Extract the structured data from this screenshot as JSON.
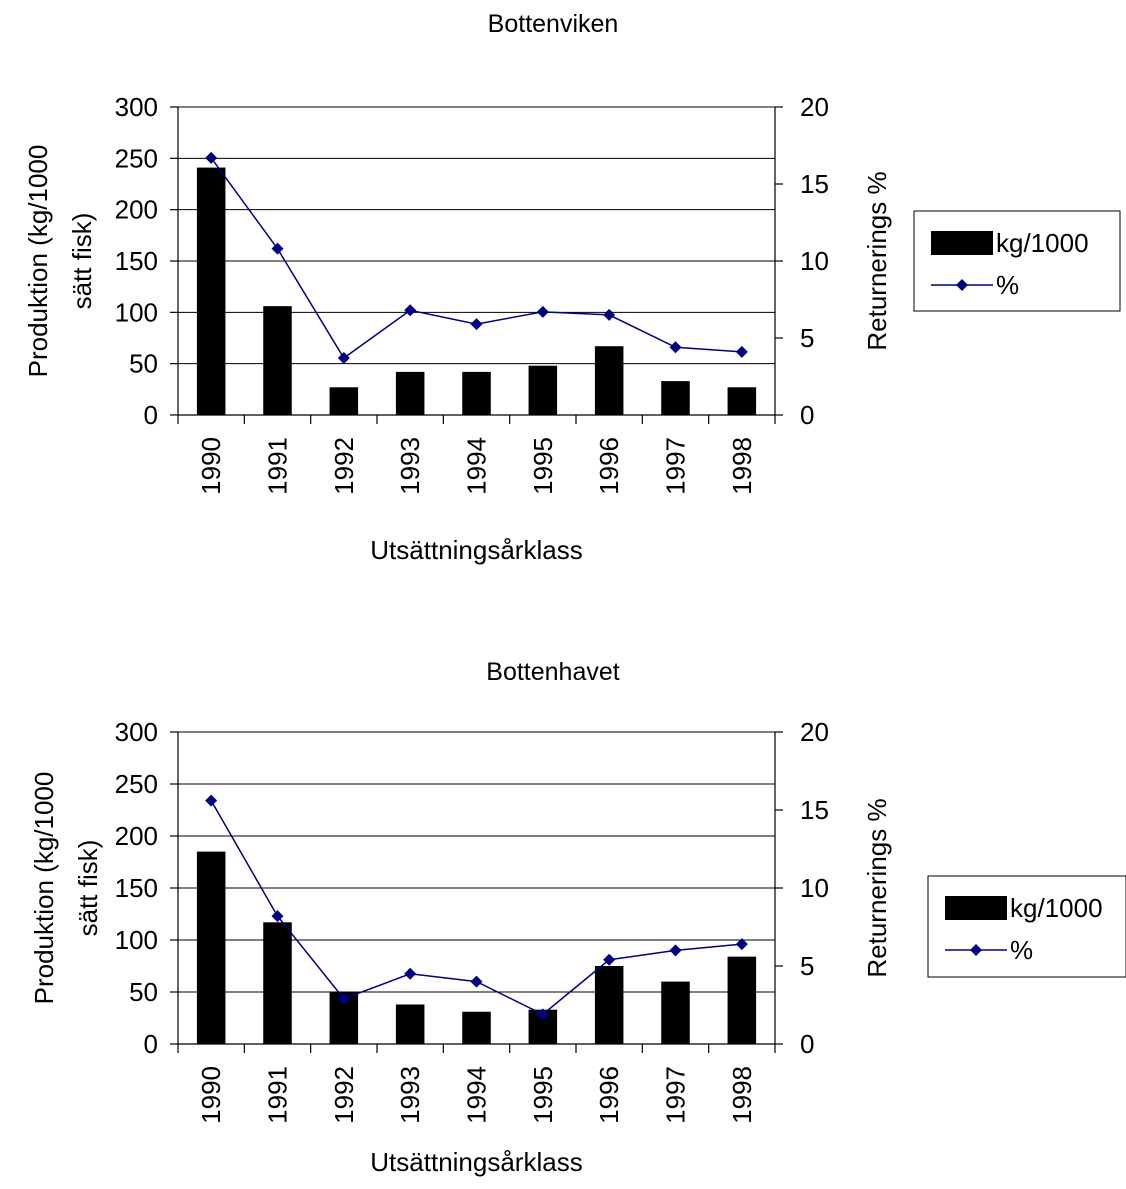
{
  "chart_data": [
    {
      "type": "bar",
      "title": "Bottenviken",
      "xlabel": "Utsättningsårklass",
      "ylabel": "Produktion (kg/1000 sätt fisk)",
      "y2label": "Returnerings %",
      "categories": [
        "1990",
        "1991",
        "1992",
        "1993",
        "1994",
        "1995",
        "1996",
        "1997",
        "1998"
      ],
      "ylim": [
        0,
        300
      ],
      "y_ticks": [
        0,
        50,
        100,
        150,
        200,
        250,
        300
      ],
      "y2lim": [
        0,
        20
      ],
      "y2_ticks": [
        0,
        5,
        10,
        15,
        20
      ],
      "grid": true,
      "legend_position": "right",
      "series": [
        {
          "name": "kg/1000",
          "type": "bar",
          "axis": "left",
          "color": "#000000",
          "values": [
            241,
            106,
            27,
            42,
            42,
            48,
            67,
            33,
            27
          ]
        },
        {
          "name": "%",
          "type": "line",
          "axis": "right",
          "color": "#000080",
          "marker": "diamond",
          "values": [
            16.7,
            10.8,
            3.7,
            6.8,
            5.9,
            6.7,
            6.5,
            4.4,
            4.1
          ]
        }
      ]
    },
    {
      "type": "bar",
      "title": "Bottenhavet",
      "xlabel": "Utsättningsårklass",
      "ylabel": "Produktion (kg/1000 sätt fisk)",
      "y2label": "Returnerings %",
      "categories": [
        "1990",
        "1991",
        "1992",
        "1993",
        "1994",
        "1995",
        "1996",
        "1997",
        "1998"
      ],
      "ylim": [
        0,
        300
      ],
      "y_ticks": [
        0,
        50,
        100,
        150,
        200,
        250,
        300
      ],
      "y2lim": [
        0,
        20
      ],
      "y2_ticks": [
        0,
        5,
        10,
        15,
        20
      ],
      "grid": true,
      "legend_position": "right",
      "series": [
        {
          "name": "kg/1000",
          "type": "bar",
          "axis": "left",
          "color": "#000000",
          "values": [
            185,
            117,
            50,
            38,
            31,
            33,
            75,
            60,
            84
          ]
        },
        {
          "name": "%",
          "type": "line",
          "axis": "right",
          "color": "#000080",
          "marker": "diamond",
          "values": [
            15.6,
            8.2,
            2.9,
            4.5,
            4.0,
            1.9,
            5.4,
            6.0,
            6.4
          ]
        }
      ]
    }
  ]
}
